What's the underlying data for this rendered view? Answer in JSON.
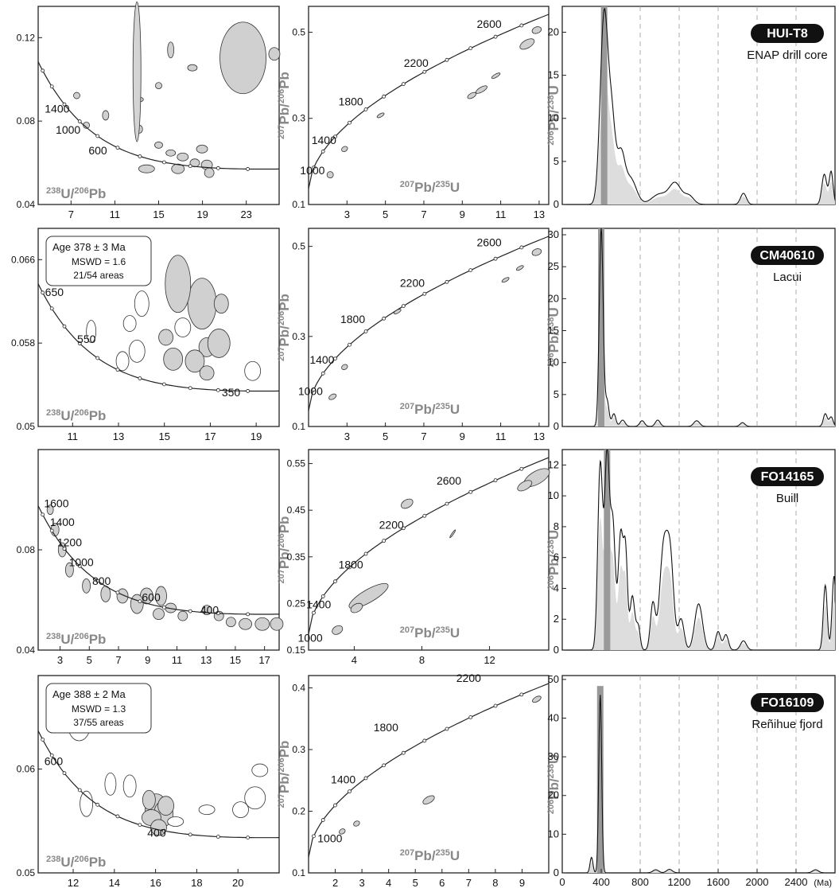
{
  "x_axis_unit": "(Ma)",
  "rows": [
    {
      "tera": {
        "xlabel_main": "U/",
        "xlabel_sup1": "238",
        "xlabel_sup2": "206",
        "xlabel_end": "Pb",
        "ylabel_main": "Pb/",
        "ylabel_sup1": "207",
        "ylabel_sup2": "206",
        "ylabel_end": "Pb",
        "xticks": [
          7,
          11,
          15,
          19,
          23
        ],
        "xlim": [
          4,
          26
        ],
        "yticks": [
          0.04,
          0.08,
          0.12
        ],
        "ylim": [
          0.04,
          0.135
        ],
        "age_labels": [
          {
            "t": "1400",
            "x": 4.6,
            "y": 0.084
          },
          {
            "t": "1000",
            "x": 5.6,
            "y": 0.074
          },
          {
            "t": "600",
            "x": 8.6,
            "y": 0.064
          }
        ],
        "box": null
      },
      "wether": {
        "xlabel_main": "Pb/",
        "xlabel_sup1": "207",
        "xlabel_sup2": "235",
        "xlabel_end": "U",
        "ylabel_main": "Pb/",
        "ylabel_sup1": "206",
        "ylabel_sup2": "238",
        "ylabel_end": "U",
        "xticks": [
          3,
          5,
          7,
          9,
          11,
          13
        ],
        "xlim": [
          1,
          13.5
        ],
        "yticks": [
          0.1,
          0.3,
          0.5
        ],
        "ylim": [
          0.1,
          0.56
        ],
        "age_labels": [
          {
            "t": "2600",
            "x": 10.4,
            "y": 0.51
          },
          {
            "t": "2200",
            "x": 6.6,
            "y": 0.42
          },
          {
            "t": "1800",
            "x": 3.2,
            "y": 0.33
          },
          {
            "t": "1400",
            "x": 1.8,
            "y": 0.24
          },
          {
            "t": "1000",
            "x": 1.2,
            "y": 0.17
          }
        ]
      },
      "kde": {
        "ylim": [
          0,
          23
        ],
        "yticks": [
          0,
          5,
          10,
          15,
          20
        ],
        "sample_name": "HUI-T8",
        "location": "ENAP drill core",
        "peaks": [
          [
            430,
            22,
            40
          ],
          [
            510,
            9,
            35
          ],
          [
            600,
            5.5,
            40
          ],
          [
            700,
            3,
            60
          ],
          [
            1000,
            1.2,
            80
          ],
          [
            1160,
            2.4,
            60
          ],
          [
            1300,
            1,
            50
          ],
          [
            1860,
            1.3,
            30
          ],
          [
            2690,
            3.5,
            25
          ],
          [
            2760,
            3.8,
            20
          ]
        ]
      }
    },
    {
      "tera": {
        "xlabel_main": "U/",
        "xlabel_sup1": "238",
        "xlabel_sup2": "206",
        "xlabel_end": "Pb",
        "ylabel_main": "Pb/",
        "ylabel_sup1": "207",
        "ylabel_sup2": "206",
        "ylabel_end": "Pb",
        "xticks": [
          11,
          13,
          15,
          17,
          19
        ],
        "xlim": [
          9.5,
          20
        ],
        "yticks": [
          0.05,
          0.058,
          0.066
        ],
        "ylim": [
          0.05,
          0.069
        ],
        "age_labels": [
          {
            "t": "650",
            "x": 9.8,
            "y": 0.0625
          },
          {
            "t": "550",
            "x": 11.2,
            "y": 0.058
          },
          {
            "t": "350",
            "x": 17.5,
            "y": 0.0529
          }
        ],
        "box": {
          "line1": "Age  378 ± 3 Ma",
          "line2": "MSWD = 1.6",
          "line3": "21/54 areas"
        }
      },
      "wether": {
        "xlabel_main": "Pb/",
        "xlabel_sup1": "207",
        "xlabel_sup2": "235",
        "xlabel_end": "U",
        "ylabel_main": "Pb/",
        "ylabel_sup1": "206",
        "ylabel_sup2": "238",
        "ylabel_end": "U",
        "xticks": [
          3,
          5,
          7,
          9,
          11,
          13
        ],
        "xlim": [
          1,
          13.5
        ],
        "yticks": [
          0.1,
          0.3,
          0.5
        ],
        "ylim": [
          0.1,
          0.54
        ],
        "age_labels": [
          {
            "t": "2600",
            "x": 10.4,
            "y": 0.5
          },
          {
            "t": "2200",
            "x": 6.4,
            "y": 0.41
          },
          {
            "t": "1800",
            "x": 3.3,
            "y": 0.33
          },
          {
            "t": "1400",
            "x": 1.7,
            "y": 0.24
          },
          {
            "t": "1000",
            "x": 1.1,
            "y": 0.17
          }
        ]
      },
      "kde": {
        "ylim": [
          0,
          31
        ],
        "yticks": [
          0,
          5,
          10,
          15,
          20,
          25,
          30
        ],
        "sample_name": "CM40610",
        "location": "Lacui",
        "peaks": [
          [
            400,
            31,
            20
          ],
          [
            460,
            4,
            20
          ],
          [
            530,
            2,
            20
          ],
          [
            620,
            1,
            25
          ],
          [
            820,
            0.9,
            25
          ],
          [
            980,
            1,
            25
          ],
          [
            1380,
            0.9,
            30
          ],
          [
            1850,
            0.6,
            25
          ],
          [
            2700,
            2,
            20
          ],
          [
            2760,
            1.5,
            20
          ]
        ]
      }
    },
    {
      "tera": {
        "xlabel_main": "U/",
        "xlabel_sup1": "238",
        "xlabel_sup2": "206",
        "xlabel_end": "Pb",
        "ylabel_main": "Pb/",
        "ylabel_sup1": "207",
        "ylabel_sup2": "206",
        "ylabel_end": "Pb",
        "xticks": [
          3,
          5,
          7,
          9,
          11,
          13,
          15,
          17
        ],
        "xlim": [
          1.5,
          18
        ],
        "yticks": [
          0.04,
          0.08
        ],
        "ylim": [
          0.04,
          0.12
        ],
        "age_labels": [
          {
            "t": "1600",
            "x": 1.9,
            "y": 0.097
          },
          {
            "t": "1400",
            "x": 2.3,
            "y": 0.0895
          },
          {
            "t": "1200",
            "x": 2.8,
            "y": 0.0815
          },
          {
            "t": "1000",
            "x": 3.6,
            "y": 0.0735
          },
          {
            "t": "800",
            "x": 5.2,
            "y": 0.066
          },
          {
            "t": "600",
            "x": 8.6,
            "y": 0.0595
          },
          {
            "t": "400",
            "x": 12.6,
            "y": 0.0545
          }
        ],
        "box": null
      },
      "wether": {
        "xlabel_main": "Pb/",
        "xlabel_sup1": "207",
        "xlabel_sup2": "235",
        "xlabel_end": "U",
        "ylabel_main": "Pb/",
        "ylabel_sup1": "206",
        "ylabel_sup2": "238",
        "ylabel_end": "U",
        "xticks": [
          4,
          8,
          12
        ],
        "xlim": [
          1.3,
          15.5
        ],
        "yticks": [
          0.15,
          0.25,
          0.35,
          0.45,
          0.55
        ],
        "ylim": [
          0.15,
          0.58
        ],
        "age_labels": [
          {
            "t": "2600",
            "x": 9.6,
            "y": 0.505
          },
          {
            "t": "2200",
            "x": 6.2,
            "y": 0.41
          },
          {
            "t": "1800",
            "x": 3.8,
            "y": 0.325
          },
          {
            "t": "1400",
            "x": 1.9,
            "y": 0.24
          },
          {
            "t": "1000",
            "x": 1.4,
            "y": 0.168
          }
        ]
      },
      "kde": {
        "ylim": [
          0,
          13
        ],
        "yticks": [
          0,
          2,
          4,
          6,
          8,
          10,
          12
        ],
        "sample_name": "FO14165",
        "location": "Buill",
        "peaks": [
          [
            390,
            12,
            25
          ],
          [
            460,
            12.5,
            25
          ],
          [
            520,
            8,
            25
          ],
          [
            600,
            7.5,
            25
          ],
          [
            650,
            6,
            20
          ],
          [
            720,
            3.5,
            25
          ],
          [
            780,
            1.5,
            20
          ],
          [
            930,
            3,
            25
          ],
          [
            1040,
            6.5,
            40
          ],
          [
            1110,
            5.5,
            35
          ],
          [
            1220,
            2,
            30
          ],
          [
            1400,
            3,
            40
          ],
          [
            1600,
            1.2,
            25
          ],
          [
            1680,
            1,
            25
          ],
          [
            1860,
            0.6,
            30
          ],
          [
            2700,
            4.2,
            20
          ],
          [
            2790,
            4.8,
            20
          ]
        ]
      }
    },
    {
      "tera": {
        "xlabel_main": "U/",
        "xlabel_sup1": "238",
        "xlabel_sup2": "206",
        "xlabel_end": "Pb",
        "ylabel_main": "Pb/",
        "ylabel_sup1": "207",
        "ylabel_sup2": "206",
        "ylabel_end": "Pb",
        "xticks": [
          12,
          14,
          16,
          18,
          20
        ],
        "xlim": [
          10.3,
          22
        ],
        "yticks": [
          0.05,
          0.06
        ],
        "ylim": [
          0.05,
          0.069
        ],
        "age_labels": [
          {
            "t": "600",
            "x": 10.6,
            "y": 0.0604
          },
          {
            "t": "400",
            "x": 15.6,
            "y": 0.0535
          }
        ],
        "box": {
          "line1": "Age  388 ± 2 Ma",
          "line2": "MSWD = 1.3",
          "line3": "37/55 areas"
        }
      },
      "wether": {
        "xlabel_main": "Pb/",
        "xlabel_sup1": "207",
        "xlabel_sup2": "235",
        "xlabel_end": "U",
        "ylabel_main": "Pb/",
        "ylabel_sup1": "206",
        "ylabel_sup2": "238",
        "ylabel_end": "U",
        "xticks": [
          2,
          3,
          4,
          5,
          6,
          7,
          8,
          9
        ],
        "xlim": [
          1,
          10
        ],
        "yticks": [
          0.1,
          0.2,
          0.3,
          0.4
        ],
        "ylim": [
          0.1,
          0.42
        ],
        "age_labels": [
          {
            "t": "2200",
            "x": 7.0,
            "y": 0.41
          },
          {
            "t": "1800",
            "x": 3.9,
            "y": 0.33
          },
          {
            "t": "1400",
            "x": 2.3,
            "y": 0.245
          },
          {
            "t": "1000",
            "x": 1.8,
            "y": 0.15
          }
        ]
      },
      "kde": {
        "ylim": [
          0,
          51
        ],
        "yticks": [
          0,
          10,
          20,
          30,
          40,
          50
        ],
        "sample_name": "FO16109",
        "location": "Reñihue fjord",
        "peaks": [
          [
            300,
            4,
            15
          ],
          [
            390,
            46,
            15
          ],
          [
            960,
            0.8,
            30
          ],
          [
            1100,
            0.9,
            30
          ],
          [
            2600,
            0.8,
            30
          ]
        ],
        "xticks": [
          0,
          400,
          800,
          1200,
          1600,
          2000,
          2400
        ]
      }
    }
  ]
}
